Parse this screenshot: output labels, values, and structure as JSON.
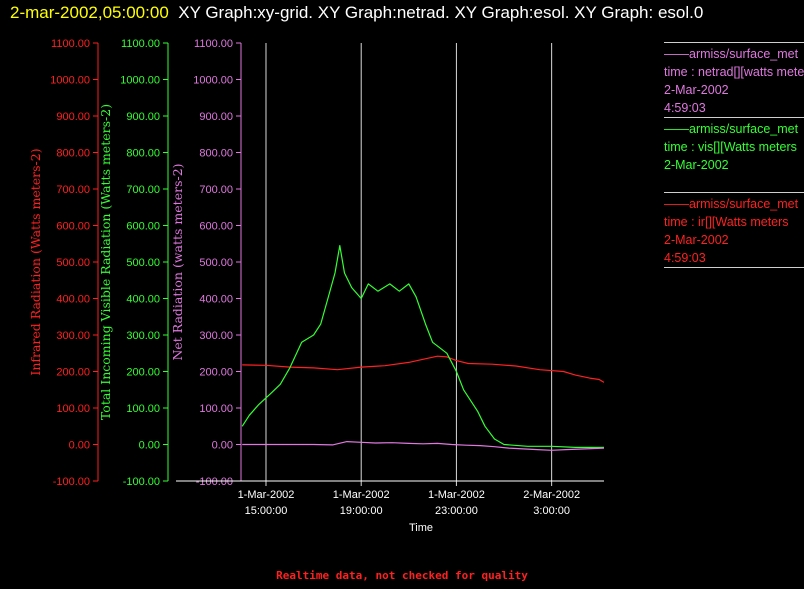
{
  "header": {
    "timestamp": "2-mar-2002,05:00:00",
    "graph_title": "XY Graph:xy-grid.  XY Graph:netrad.  XY Graph:esol.  XY Graph: esol.0"
  },
  "colors": {
    "infrared": "#ff2020",
    "visible": "#33ff33",
    "net": "#e078e0",
    "grid": "#ffffff",
    "timestamp": "#ffff00"
  },
  "legend": [
    {
      "line1": "armiss/surface_met",
      "line2": "time : netrad[][watts meters",
      "line3": "2-Mar-2002",
      "line4": "4:59:03",
      "color": "#e078e0"
    },
    {
      "line1": "armiss/surface_met",
      "line2": "time : vis[][Watts meters",
      "line3": "2-Mar-2002",
      "line4": "",
      "color": "#33ff33"
    },
    {
      "line1": "armiss/surface_met",
      "line2": "time : ir[][Watts meters",
      "line3": "2-Mar-2002",
      "line4": "4:59:03",
      "color": "#ff2020"
    }
  ],
  "footnote": "Realtime data, not checked for quality",
  "chart_data": {
    "type": "line",
    "xlabel": "Time",
    "x_ticks": [
      {
        "hours": 15,
        "line1": "1-Mar-2002",
        "line2": "15:00:00"
      },
      {
        "hours": 19,
        "line1": "1-Mar-2002",
        "line2": "19:00:00"
      },
      {
        "hours": 23,
        "line1": "1-Mar-2002",
        "line2": "23:00:00"
      },
      {
        "hours": 27,
        "line1": "2-Mar-2002",
        "line2": "3:00:00"
      }
    ],
    "x_range_hours": [
      13.95,
      29.2
    ],
    "grid": "vertical",
    "y_axes": [
      {
        "key": "ir",
        "label": "Infrared Radiation (Watts meters-2)",
        "color": "#ff2020",
        "ylim": [
          -100,
          1100
        ],
        "ticks": [
          "-100.00",
          "0.00",
          "100.00",
          "200.00",
          "300.00",
          "400.00",
          "500.00",
          "600.00",
          "700.00",
          "800.00",
          "900.00",
          "1000.00",
          "1100.00"
        ]
      },
      {
        "key": "vis",
        "label": "Total Incoming Visible Radiation (Watts meters-2)",
        "color": "#33ff33",
        "ylim": [
          -100,
          1100
        ],
        "ticks": [
          "-100.00",
          "0.00",
          "100.00",
          "200.00",
          "300.00",
          "400.00",
          "500.00",
          "600.00",
          "700.00",
          "800.00",
          "900.00",
          "1000.00",
          "1100.00"
        ]
      },
      {
        "key": "net",
        "label": "Net Radiation (watts meters-2)",
        "color": "#e078e0",
        "ylim": [
          -100,
          1100
        ],
        "ticks": [
          "-100.00",
          "0.00",
          "100.00",
          "200.00",
          "300.00",
          "400.00",
          "500.00",
          "600.00",
          "700.00",
          "800.00",
          "900.00",
          "1000.00",
          "1100.00"
        ]
      }
    ],
    "series": [
      {
        "name": "ir",
        "color": "#ff2020",
        "points": [
          [
            14.0,
            218
          ],
          [
            15.0,
            217
          ],
          [
            16.0,
            212
          ],
          [
            17.0,
            210
          ],
          [
            18.0,
            205
          ],
          [
            19.0,
            212
          ],
          [
            20.0,
            216
          ],
          [
            21.0,
            225
          ],
          [
            21.5,
            232
          ],
          [
            22.2,
            242
          ],
          [
            22.6,
            240
          ],
          [
            23.0,
            230
          ],
          [
            23.5,
            222
          ],
          [
            24.5,
            220
          ],
          [
            25.5,
            215
          ],
          [
            26.5,
            205
          ],
          [
            27.5,
            200
          ],
          [
            28.0,
            190
          ],
          [
            28.6,
            182
          ],
          [
            29.0,
            178
          ],
          [
            29.2,
            170
          ]
        ]
      },
      {
        "name": "vis",
        "color": "#33ff33",
        "points": [
          [
            14.0,
            50
          ],
          [
            14.3,
            80
          ],
          [
            14.7,
            110
          ],
          [
            15.2,
            140
          ],
          [
            15.6,
            165
          ],
          [
            16.0,
            210
          ],
          [
            16.5,
            280
          ],
          [
            17.0,
            300
          ],
          [
            17.3,
            330
          ],
          [
            17.6,
            400
          ],
          [
            17.9,
            470
          ],
          [
            18.1,
            545
          ],
          [
            18.3,
            470
          ],
          [
            18.6,
            430
          ],
          [
            19.0,
            400
          ],
          [
            19.3,
            440
          ],
          [
            19.7,
            420
          ],
          [
            20.2,
            440
          ],
          [
            20.6,
            420
          ],
          [
            21.0,
            440
          ],
          [
            21.3,
            405
          ],
          [
            21.7,
            330
          ],
          [
            22.0,
            280
          ],
          [
            22.3,
            265
          ],
          [
            22.6,
            250
          ],
          [
            23.0,
            200
          ],
          [
            23.3,
            150
          ],
          [
            23.6,
            120
          ],
          [
            23.9,
            90
          ],
          [
            24.2,
            50
          ],
          [
            24.6,
            15
          ],
          [
            25.0,
            0
          ],
          [
            26.0,
            -5
          ],
          [
            27.0,
            -5
          ],
          [
            28.0,
            -8
          ],
          [
            29.2,
            -8
          ]
        ]
      },
      {
        "name": "net",
        "color": "#e078e0",
        "points": [
          [
            14.0,
            0
          ],
          [
            15.0,
            0
          ],
          [
            16.0,
            0
          ],
          [
            17.0,
            0
          ],
          [
            17.8,
            -1
          ],
          [
            18.4,
            8
          ],
          [
            19.0,
            6
          ],
          [
            19.6,
            4
          ],
          [
            20.3,
            5
          ],
          [
            21.0,
            3
          ],
          [
            21.6,
            2
          ],
          [
            22.2,
            3
          ],
          [
            22.8,
            0
          ],
          [
            23.4,
            -2
          ],
          [
            24.0,
            -3
          ],
          [
            24.6,
            -6
          ],
          [
            25.2,
            -10
          ],
          [
            25.8,
            -12
          ],
          [
            26.4,
            -14
          ],
          [
            27.0,
            -16
          ],
          [
            27.6,
            -14
          ],
          [
            28.4,
            -12
          ],
          [
            29.2,
            -10
          ]
        ]
      }
    ]
  }
}
